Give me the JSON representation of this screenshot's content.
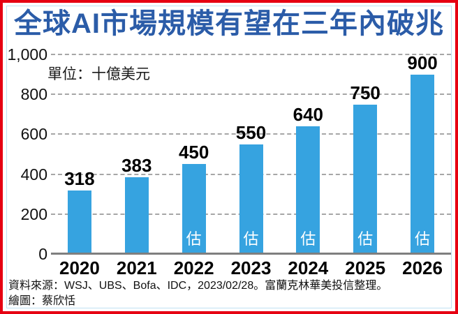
{
  "title": "全球AI市場規模有望在三年內破兆",
  "chart_data": {
    "type": "bar",
    "title": "全球AI市場規模有望在三年內破兆",
    "unit_label": "單位：十億美元",
    "categories": [
      "2020",
      "2021",
      "2022",
      "2023",
      "2024",
      "2025",
      "2026"
    ],
    "values": [
      318,
      383,
      450,
      550,
      640,
      750,
      900
    ],
    "estimated_flags": [
      false,
      false,
      true,
      true,
      true,
      true,
      true
    ],
    "estimated_label": "估",
    "xlabel": "",
    "ylabel": "",
    "ylim": [
      0,
      1000
    ],
    "ytick_values": [
      0,
      200,
      400,
      600,
      800,
      1000
    ],
    "yticks": [
      "0",
      "200",
      "400",
      "600",
      "800",
      "1,000"
    ],
    "grid": "horizontal-dashed",
    "legend": "none"
  },
  "footer": {
    "source": "資料來源：WSJ、UBS、Bofa、IDC，2023/02/28。富蘭克林華美投信整理。",
    "credit": "繪圖：蔡欣恬"
  },
  "colors": {
    "bar": "#36a3e0",
    "title": "#2b5ca8",
    "outer_border": "#e60012",
    "inner_border": "#bfe0f2",
    "gridline": "#a6a6a6",
    "axis_line": "#7f7f7f",
    "text": "#111111",
    "estimated_text": "#ffffff"
  }
}
